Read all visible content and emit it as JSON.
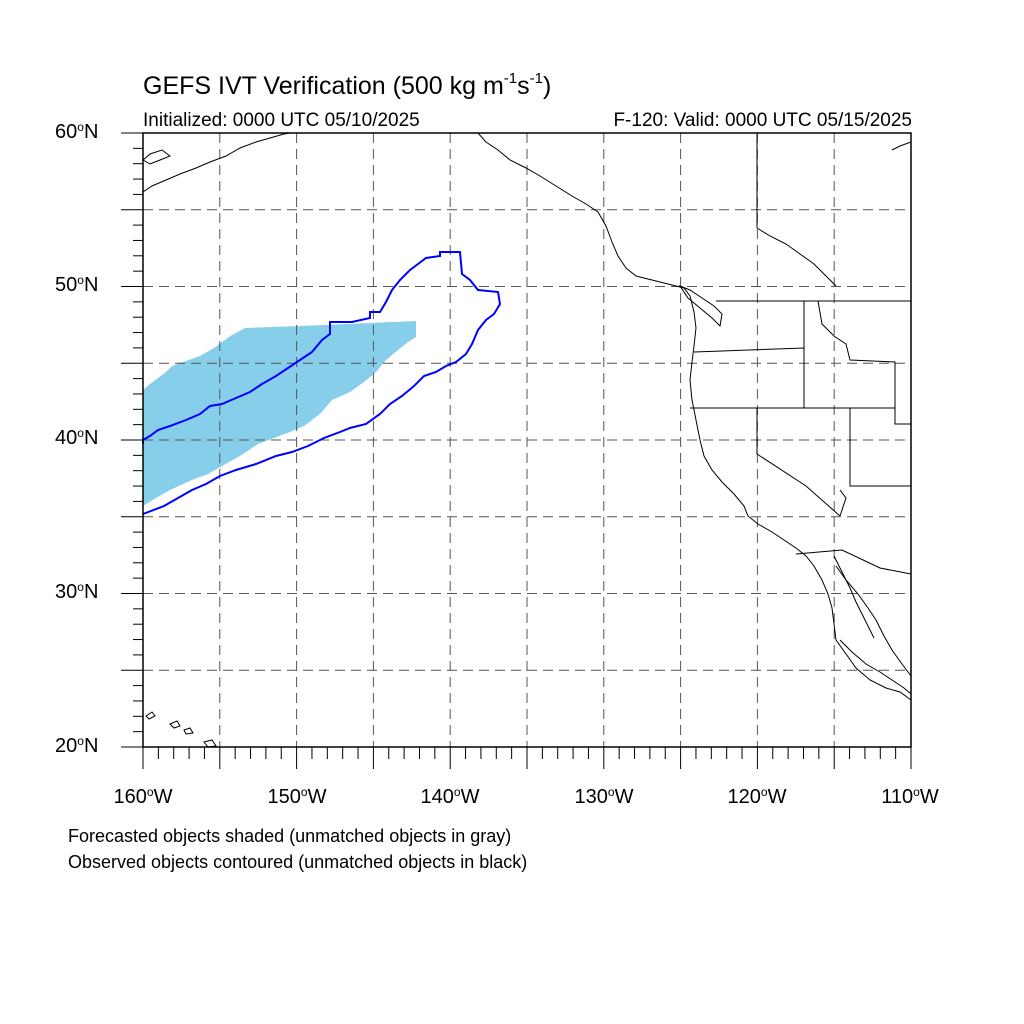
{
  "header": {
    "title_prefix": "GEFS IVT Verification (500 kg m",
    "title_exp1": "-1",
    "title_mid": "s",
    "title_exp2": "-1",
    "title_suffix": ")",
    "initialized": "Initialized: 0000 UTC 05/10/2025",
    "valid": "F-120: Valid: 0000 UTC 05/15/2025"
  },
  "map": {
    "projection": "cylindrical-equidistant",
    "lon_range": [
      -160,
      -110
    ],
    "lat_range": [
      20,
      60
    ],
    "grid_lines": "dashed",
    "lat_labels": [
      {
        "deg": "60",
        "hemi": "N"
      },
      {
        "deg": "50",
        "hemi": "N"
      },
      {
        "deg": "40",
        "hemi": "N"
      },
      {
        "deg": "30",
        "hemi": "N"
      },
      {
        "deg": "20",
        "hemi": "N"
      }
    ],
    "lon_labels": [
      {
        "deg": "160",
        "hemi": "W"
      },
      {
        "deg": "150",
        "hemi": "W"
      },
      {
        "deg": "140",
        "hemi": "W"
      },
      {
        "deg": "130",
        "hemi": "W"
      },
      {
        "deg": "120",
        "hemi": "W"
      },
      {
        "deg": "110",
        "hemi": "W"
      }
    ],
    "forecast_object_color": "#87ceeb",
    "observed_contour_color": "#0000ff"
  },
  "notes": {
    "line1": "Forecasted objects shaded (unmatched objects in gray)",
    "line2": "Observed objects contoured (unmatched objects in black)"
  }
}
